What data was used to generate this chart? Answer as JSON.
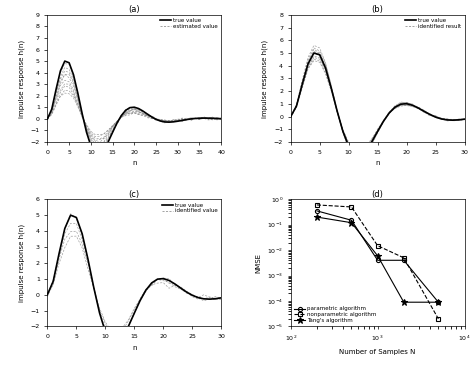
{
  "panel_a": {
    "title": "(a)",
    "xlabel": "n",
    "ylabel": "impulse response h(n)",
    "xlim": [
      0,
      40
    ],
    "ylim": [
      -2.0,
      9.0
    ],
    "yticks": [
      -2.0,
      -1.0,
      0.0,
      1.0,
      2.0,
      3.0,
      4.0,
      5.0,
      6.0,
      7.0,
      8.0,
      9.0
    ],
    "xticks": [
      0,
      5,
      10,
      15,
      20,
      25,
      30,
      35,
      40
    ],
    "true_peak": 5.0,
    "num_estimated": 10,
    "legend": [
      "true value",
      "estimated value"
    ]
  },
  "panel_b": {
    "title": "(b)",
    "xlabel": "n",
    "ylabel": "impulse response h(n)",
    "xlim": [
      0,
      30
    ],
    "ylim": [
      -2.0,
      8.0
    ],
    "yticks": [
      -2.0,
      -1.0,
      0.0,
      1.0,
      2.0,
      3.0,
      4.0,
      5.0,
      6.0,
      7.0,
      8.0
    ],
    "xticks": [
      0,
      5,
      10,
      15,
      20,
      25,
      30
    ],
    "true_peak": 5.0,
    "num_estimated": 10,
    "legend": [
      "true value",
      "identified result"
    ]
  },
  "panel_c": {
    "title": "(c)",
    "xlabel": "n",
    "ylabel": "impulse response h(n)",
    "xlim": [
      0,
      30
    ],
    "ylim": [
      -2.0,
      6.0
    ],
    "yticks": [
      -2.0,
      -1.0,
      0.0,
      1.0,
      2.0,
      3.0,
      4.0,
      5.0,
      6.0
    ],
    "xticks": [
      0,
      5,
      10,
      15,
      20,
      25,
      30
    ],
    "true_peak": 5.0,
    "num_estimated": 4,
    "legend": [
      "true value",
      "identified value"
    ]
  },
  "panel_d": {
    "title": "(d)",
    "xlabel": "Number of Samples N",
    "ylabel": "NMSE",
    "x_values": [
      200,
      500,
      1000,
      2000,
      5000
    ],
    "parametric": [
      0.35,
      0.15,
      0.004,
      0.004,
      9e-05
    ],
    "nonparametric": [
      0.6,
      0.5,
      0.015,
      0.005,
      2e-05
    ],
    "tangs": [
      0.2,
      0.12,
      0.006,
      9e-05,
      9e-05
    ],
    "legend": [
      "parametric algorithm",
      "nonparametric algorithm",
      "Tang's algorithm"
    ]
  },
  "background_color": "#ffffff"
}
